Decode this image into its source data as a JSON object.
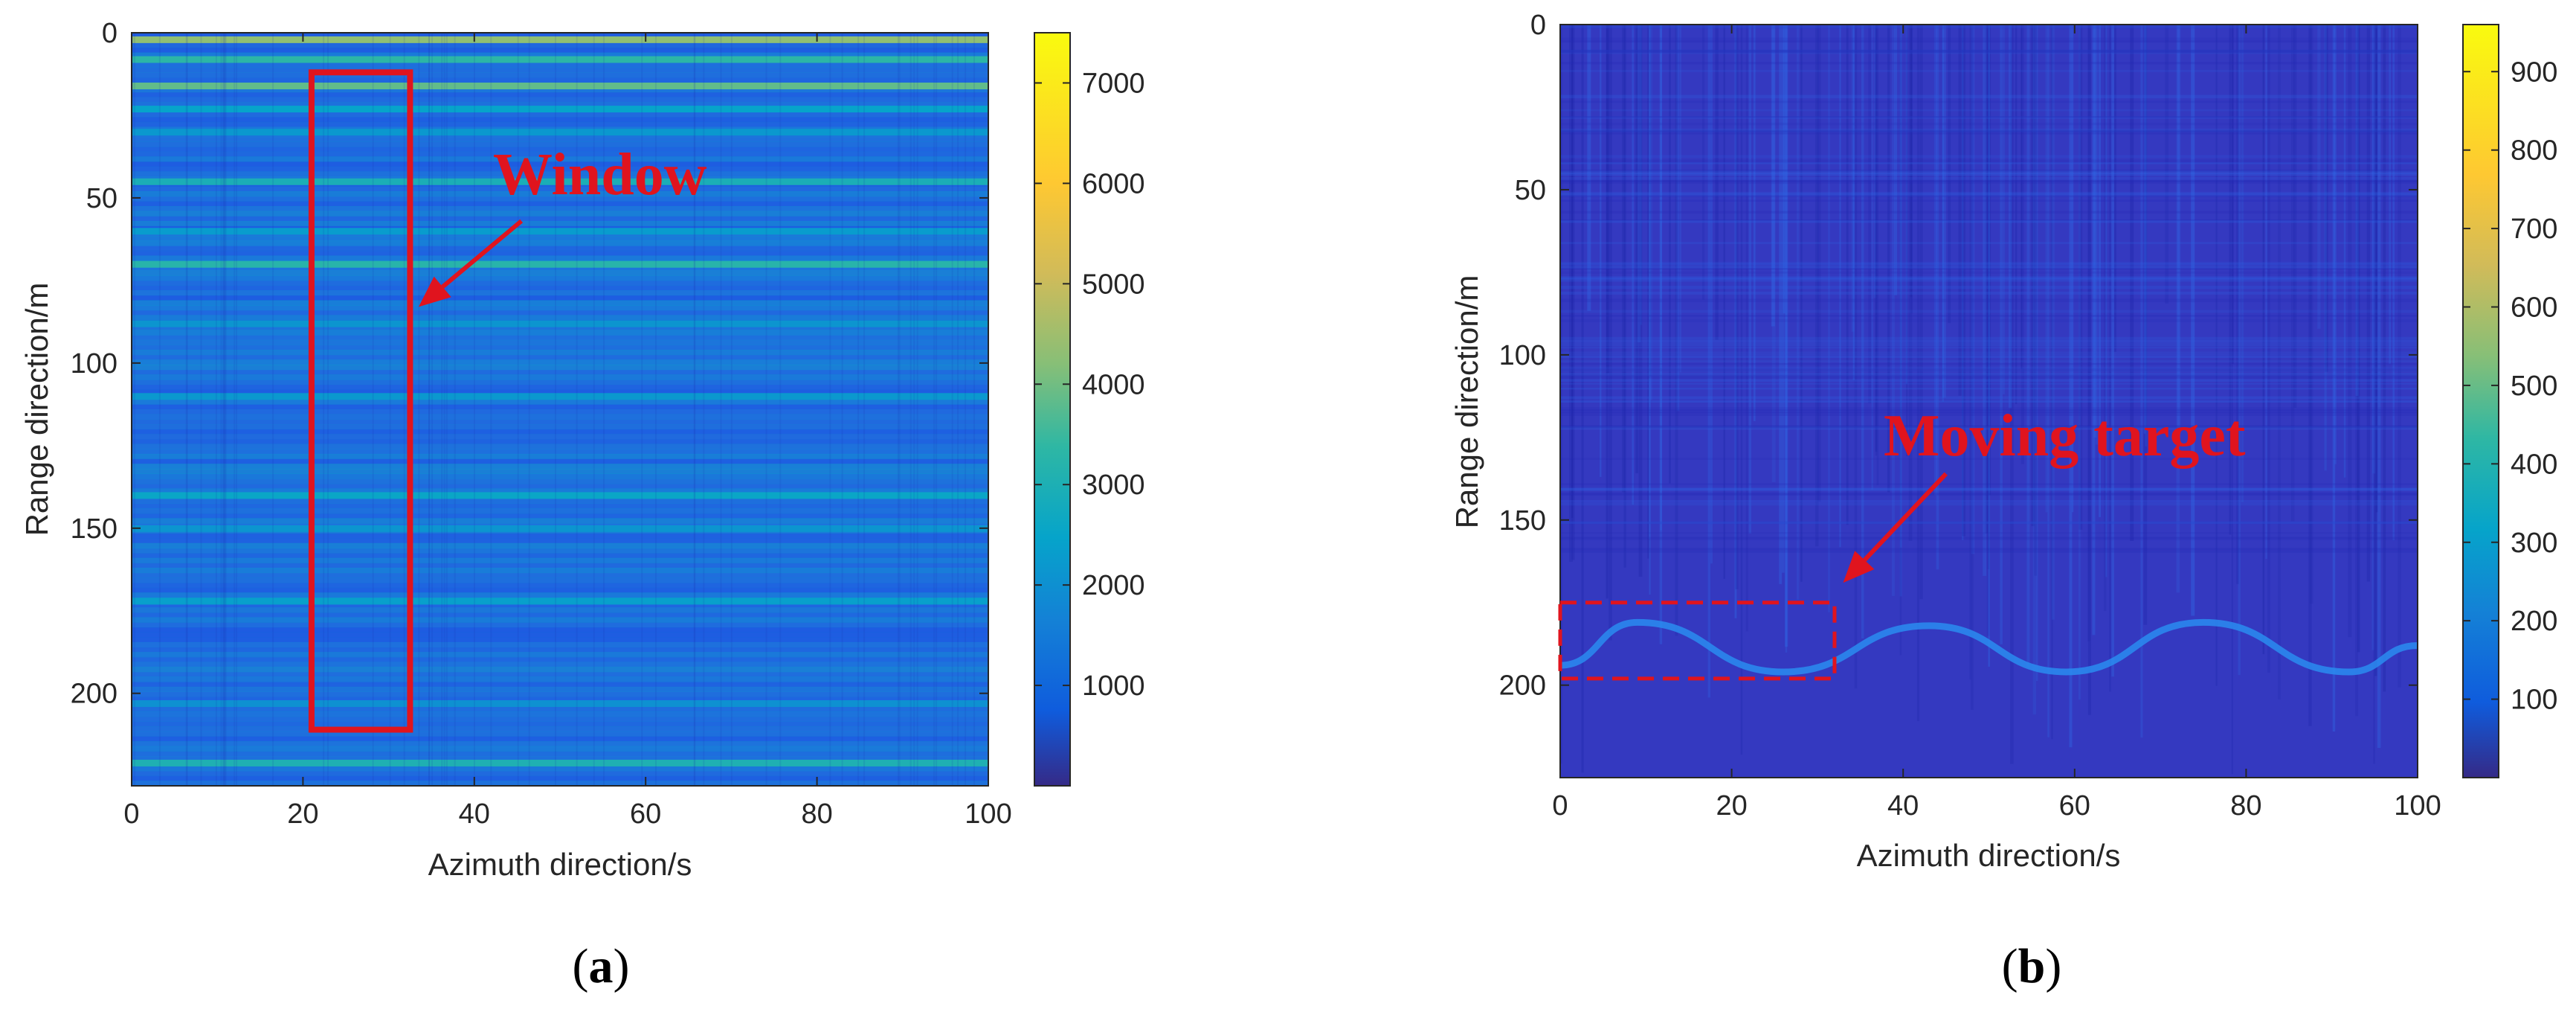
{
  "figure": {
    "panels": [
      {
        "id": "a",
        "label_open": "(",
        "label_letter": "a",
        "label_close": ")",
        "annotation": "Window",
        "annotation_color": "#e0141e",
        "annotation_arrow_to": {
          "azimuth_s": 33.5,
          "range_m": 83
        },
        "annotation_arrow_from": {
          "azimuth_s": 45.5,
          "range_m": 57
        }
      },
      {
        "id": "b",
        "label_open": "(",
        "label_letter": "b",
        "label_close": ")",
        "annotation": "Moving target",
        "annotation_color": "#e0141e",
        "annotation_arrow_to": {
          "azimuth_s": 33,
          "range_m": 169
        },
        "annotation_arrow_from": {
          "azimuth_s": 45,
          "range_m": 136
        }
      }
    ]
  },
  "chart_data": [
    {
      "type": "heatmap",
      "title": "",
      "xlabel": "Azimuth direction/s",
      "ylabel": "Range direction/m",
      "xlim": [
        0,
        100
      ],
      "ylim": [
        0,
        228
      ],
      "y_reversed": true,
      "xticks": [
        0,
        20,
        40,
        60,
        80,
        100
      ],
      "yticks": [
        0,
        50,
        100,
        150,
        200
      ],
      "colormap": "parula",
      "colorbar": {
        "min": 0,
        "max": 7500,
        "ticks": [
          1000,
          2000,
          3000,
          4000,
          5000,
          6000,
          7000
        ]
      },
      "window_box": {
        "x0": 21,
        "x1": 32.5,
        "y0": 12,
        "y1": 211,
        "style": "solid"
      },
      "range_bands": [
        {
          "range_m": 2,
          "value": 4800
        },
        {
          "range_m": 8,
          "value": 3700
        },
        {
          "range_m": 16,
          "value": 4300
        },
        {
          "range_m": 23,
          "value": 2800
        },
        {
          "range_m": 30,
          "value": 2500
        },
        {
          "range_m": 45,
          "value": 3300
        },
        {
          "range_m": 60,
          "value": 2600
        },
        {
          "range_m": 70,
          "value": 3600
        },
        {
          "range_m": 88,
          "value": 2400
        },
        {
          "range_m": 110,
          "value": 2500
        },
        {
          "range_m": 140,
          "value": 2900
        },
        {
          "range_m": 150,
          "value": 2400
        },
        {
          "range_m": 172,
          "value": 2700
        },
        {
          "range_m": 203,
          "value": 2300
        },
        {
          "range_m": 221,
          "value": 3400
        }
      ]
    },
    {
      "type": "heatmap",
      "title": "",
      "xlabel": "Azimuth direction/s",
      "ylabel": "Range direction/m",
      "xlim": [
        0,
        100
      ],
      "ylim": [
        0,
        228
      ],
      "y_reversed": true,
      "xticks": [
        0,
        20,
        40,
        60,
        80,
        100
      ],
      "yticks": [
        0,
        50,
        100,
        150,
        200
      ],
      "colormap": "parula",
      "colorbar": {
        "min": 0,
        "max": 960,
        "ticks": [
          100,
          200,
          300,
          400,
          500,
          600,
          700,
          800,
          900
        ]
      },
      "target_box": {
        "x0": 0,
        "x1": 32,
        "y0": 175,
        "y1": 198,
        "style": "dashed"
      },
      "target_track": {
        "azimuth_s": [
          0,
          9,
          26,
          43,
          59,
          75,
          92,
          100
        ],
        "range_m": [
          194,
          181,
          196,
          182,
          196,
          181,
          196,
          188
        ]
      }
    }
  ]
}
